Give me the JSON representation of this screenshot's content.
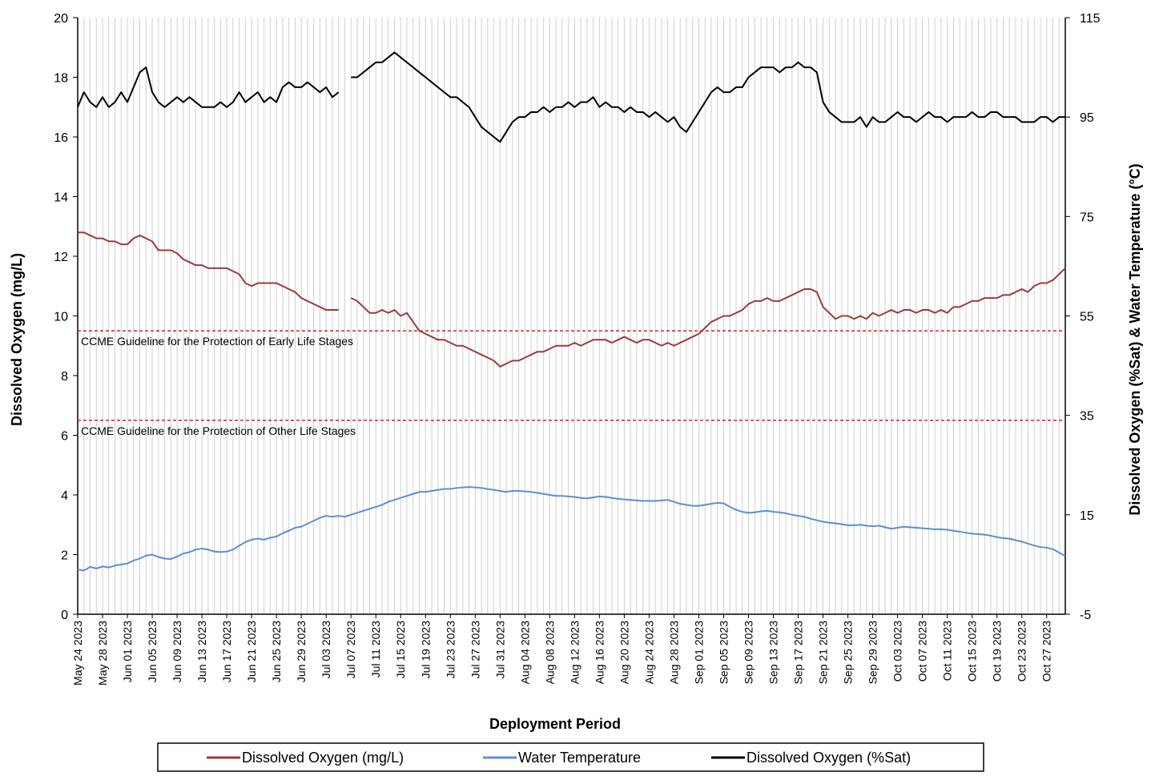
{
  "chart_data": {
    "type": "line",
    "x_label": "Deployment Period",
    "y_label": "Dissolved  Oxygen (mg/L)",
    "y2_label": "Dissolved  Oxygen (%Sat) & Water Temperature (°C)",
    "ylim": [
      0,
      20
    ],
    "yticks": [
      0,
      2,
      4,
      6,
      8,
      10,
      12,
      14,
      16,
      18,
      20
    ],
    "y2lim": [
      -5,
      115
    ],
    "y2ticks": [
      -5,
      15,
      35,
      55,
      75,
      95,
      115
    ],
    "grid": "x",
    "legend": "bottom",
    "categories": [
      "May 24 2023",
      null,
      null,
      null,
      "May 28 2023",
      null,
      null,
      null,
      "Jun 01 2023",
      null,
      null,
      null,
      "Jun 05 2023",
      null,
      null,
      null,
      "Jun 09 2023",
      null,
      null,
      null,
      "Jun 13 2023",
      null,
      null,
      null,
      "Jun 17 2023",
      null,
      null,
      null,
      "Jun 21 2023",
      null,
      null,
      null,
      "Jun 25 2023",
      null,
      null,
      null,
      "Jun 29 2023",
      null,
      null,
      null,
      "Jul 03 2023",
      null,
      null,
      null,
      "Jul 07 2023",
      null,
      null,
      null,
      "Jul 11 2023",
      null,
      null,
      null,
      "Jul 15 2023",
      null,
      null,
      null,
      "Jul 19 2023",
      null,
      null,
      null,
      "Jul 23 2023",
      null,
      null,
      null,
      "Jul 27 2023",
      null,
      null,
      null,
      "Jul 31 2023",
      null,
      null,
      null,
      "Aug 04 2023",
      null,
      null,
      null,
      "Aug 08 2023",
      null,
      null,
      null,
      "Aug 12 2023",
      null,
      null,
      null,
      "Aug 16 2023",
      null,
      null,
      null,
      "Aug 20 2023",
      null,
      null,
      null,
      "Aug 24 2023",
      null,
      null,
      null,
      "Aug 28 2023",
      null,
      null,
      null,
      "Sep 01 2023",
      null,
      null,
      null,
      "Sep 05 2023",
      null,
      null,
      null,
      "Sep 09 2023",
      null,
      null,
      null,
      "Sep 13 2023",
      null,
      null,
      null,
      "Sep 17 2023",
      null,
      null,
      null,
      "Sep 21 2023",
      null,
      null,
      null,
      "Sep 25 2023",
      null,
      null,
      null,
      "Sep 29 2023",
      null,
      null,
      null,
      "Oct 03 2023",
      null,
      null,
      null,
      "Oct 07 2023",
      null,
      null,
      null,
      "Oct 11 2023",
      null,
      null,
      null,
      "Oct 15 2023",
      null,
      null,
      null,
      "Oct 19 2023",
      null,
      null,
      null,
      "Oct 23 2023",
      null,
      null,
      null,
      "Oct 27 2023",
      null,
      null,
      null
    ],
    "series": [
      {
        "name": "Dissolved Oxygen (mg/L)",
        "color": "#9e3a3a",
        "axis": "y",
        "values": [
          12.8,
          12.8,
          12.7,
          12.6,
          12.6,
          12.5,
          12.5,
          12.4,
          12.4,
          12.6,
          12.7,
          12.6,
          12.5,
          12.2,
          12.2,
          12.2,
          12.1,
          11.9,
          11.8,
          11.7,
          11.7,
          11.6,
          11.6,
          11.6,
          11.6,
          11.5,
          11.4,
          11.1,
          11.0,
          11.1,
          11.1,
          11.1,
          11.1,
          11.0,
          10.9,
          10.8,
          10.6,
          10.5,
          10.4,
          10.3,
          10.2,
          10.2,
          10.2,
          null,
          10.6,
          10.5,
          10.3,
          10.1,
          10.1,
          10.2,
          10.1,
          10.2,
          10.0,
          10.1,
          9.8,
          9.5,
          9.4,
          9.3,
          9.2,
          9.2,
          9.1,
          9.0,
          9.0,
          8.9,
          8.8,
          8.7,
          8.6,
          8.5,
          8.3,
          8.4,
          8.5,
          8.5,
          8.6,
          8.7,
          8.8,
          8.8,
          8.9,
          9.0,
          9.0,
          9.0,
          9.1,
          9.0,
          9.1,
          9.2,
          9.2,
          9.2,
          9.1,
          9.2,
          9.3,
          9.2,
          9.1,
          9.2,
          9.2,
          9.1,
          9.0,
          9.1,
          9.0,
          9.1,
          9.2,
          9.3,
          9.4,
          9.6,
          9.8,
          9.9,
          10.0,
          10.0,
          10.1,
          10.2,
          10.4,
          10.5,
          10.5,
          10.6,
          10.5,
          10.5,
          10.6,
          10.7,
          10.8,
          10.9,
          10.9,
          10.8,
          10.3,
          10.1,
          9.9,
          10.0,
          10.0,
          9.9,
          10.0,
          9.9,
          10.1,
          10.0,
          10.1,
          10.2,
          10.1,
          10.2,
          10.2,
          10.1,
          10.2,
          10.2,
          10.1,
          10.2,
          10.1,
          10.3,
          10.3,
          10.4,
          10.5,
          10.5,
          10.6,
          10.6,
          10.6,
          10.7,
          10.7,
          10.8,
          10.9,
          10.8,
          11.0,
          11.1,
          11.1,
          11.2,
          11.4,
          11.6
        ]
      },
      {
        "name": "Water Temperature",
        "color": "#5b8fd0",
        "axis": "y2",
        "values": [
          4.0,
          3.8,
          4.5,
          4.2,
          4.6,
          4.4,
          4.8,
          5.0,
          5.2,
          5.8,
          6.2,
          6.8,
          7.0,
          6.5,
          6.2,
          6.1,
          6.6,
          7.2,
          7.5,
          8.0,
          8.2,
          8.0,
          7.6,
          7.5,
          7.6,
          8.0,
          8.8,
          9.5,
          10.0,
          10.2,
          10.0,
          10.4,
          10.6,
          11.3,
          11.8,
          12.4,
          12.6,
          13.2,
          13.8,
          14.4,
          14.8,
          14.6,
          14.8,
          14.6,
          15.0,
          15.4,
          15.8,
          16.2,
          16.6,
          17.0,
          17.6,
          18.0,
          18.4,
          18.8,
          19.2,
          19.6,
          19.6,
          19.8,
          20.0,
          20.2,
          20.2,
          20.4,
          20.5,
          20.6,
          20.5,
          20.4,
          20.2,
          20.0,
          19.8,
          19.6,
          19.8,
          19.8,
          19.7,
          19.6,
          19.4,
          19.2,
          19.0,
          18.8,
          18.8,
          18.7,
          18.6,
          18.4,
          18.3,
          18.5,
          18.7,
          18.6,
          18.4,
          18.2,
          18.1,
          18.0,
          17.9,
          17.8,
          17.8,
          17.8,
          17.9,
          18.0,
          17.6,
          17.2,
          17.0,
          16.8,
          16.8,
          17.0,
          17.2,
          17.4,
          17.3,
          16.6,
          16.0,
          15.6,
          15.4,
          15.5,
          15.7,
          15.8,
          15.6,
          15.5,
          15.3,
          15.0,
          14.8,
          14.6,
          14.2,
          13.9,
          13.6,
          13.4,
          13.3,
          13.1,
          12.9,
          12.9,
          13.0,
          12.8,
          12.7,
          12.8,
          12.5,
          12.2,
          12.4,
          12.6,
          12.5,
          12.4,
          12.3,
          12.2,
          12.1,
          12.1,
          12.0,
          11.8,
          11.6,
          11.4,
          11.2,
          11.1,
          11.0,
          10.8,
          10.5,
          10.3,
          10.2,
          9.9,
          9.6,
          9.2,
          8.8,
          8.5,
          8.4,
          8.1,
          7.4,
          6.7
        ]
      },
      {
        "name": "Dissolved Oxygen (%Sat)",
        "color": "#000000",
        "axis": "y2",
        "values": [
          97,
          100,
          98,
          97,
          99,
          97,
          98,
          100,
          98,
          101,
          104,
          105,
          100,
          98,
          97,
          98,
          99,
          98,
          99,
          98,
          97,
          97,
          97,
          98,
          97,
          98,
          100,
          98,
          99,
          100,
          98,
          99,
          98,
          101,
          102,
          101,
          101,
          102,
          101,
          100,
          101,
          99,
          100,
          null,
          103,
          103,
          104,
          105,
          106,
          106,
          107,
          108,
          107,
          106,
          105,
          104,
          103,
          102,
          101,
          100,
          99,
          99,
          98,
          97,
          95,
          93,
          92,
          91,
          90,
          92,
          94,
          95,
          95,
          96,
          96,
          97,
          96,
          97,
          97,
          98,
          97,
          98,
          98,
          99,
          97,
          98,
          97,
          97,
          96,
          97,
          96,
          96,
          95,
          96,
          95,
          94,
          95,
          93,
          92,
          94,
          96,
          98,
          100,
          101,
          100,
          100,
          101,
          101,
          103,
          104,
          105,
          105,
          105,
          104,
          105,
          105,
          106,
          105,
          105,
          104,
          98,
          96,
          95,
          94,
          94,
          94,
          95,
          93,
          95,
          94,
          94,
          95,
          96,
          95,
          95,
          94,
          95,
          96,
          95,
          95,
          94,
          95,
          95,
          95,
          96,
          95,
          95,
          96,
          96,
          95,
          95,
          95,
          94,
          94,
          94,
          95,
          95,
          94,
          95,
          95
        ]
      }
    ],
    "reference_lines": [
      {
        "value": 9.5,
        "color": "#d62020",
        "label": "CCME  Guideline  for the Protection of Early Life Stages"
      },
      {
        "value": 6.5,
        "color": "#d62020",
        "label": "CCME  Guideline  for the Protection of Other Life Stages"
      }
    ]
  }
}
